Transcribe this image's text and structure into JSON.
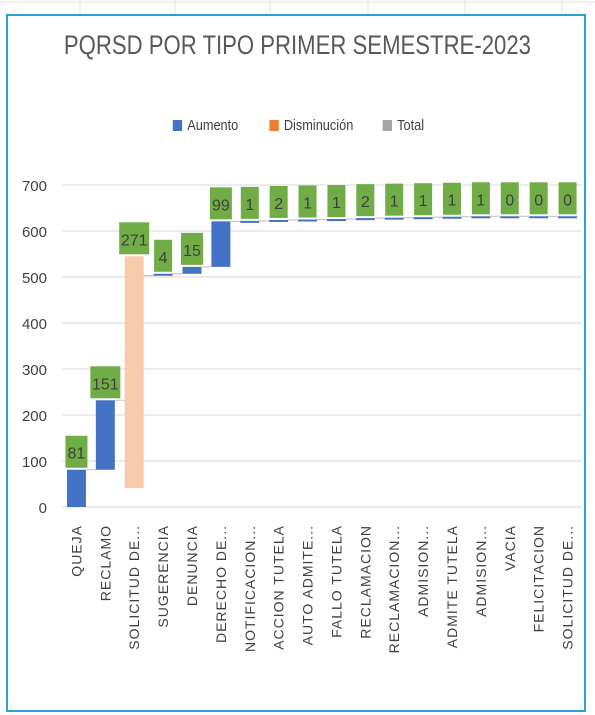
{
  "colors": {
    "aumento": "#4472c4",
    "disminucion": "#f8cbad",
    "total": "#a5a5a5",
    "label_bg": "#70ad47",
    "grid": "#d9d9d9",
    "frame": "#29a3d6"
  },
  "legend": [
    {
      "label": "Aumento",
      "color": "#4472c4"
    },
    {
      "label": "Disminución",
      "color": "#ed7d31"
    },
    {
      "label": "Total",
      "color": "#a5a5a5"
    }
  ],
  "chart_data": {
    "type": "waterfall",
    "title": "PQRSD POR TIPO PRIMER SEMESTRE-2023",
    "ylim": [
      0,
      700
    ],
    "yticks": [
      "0",
      "100",
      "200",
      "300",
      "400",
      "500",
      "600",
      "700"
    ],
    "grid": true,
    "legend_position": "top",
    "categories": [
      "QUEJA",
      "RECLAMO",
      "SOLICITUD DE...",
      "SUGERENCIA",
      "DENUNCIA",
      "DERECHO DE...",
      "NOTIFICACION...",
      "ACCION TUTELA",
      "AUTO ADMITE...",
      "FALLO TUTELA",
      "RECLAMACION",
      "RECLAMACION...",
      "ADMISION...",
      "ADMITE TUTELA",
      "ADMISION...",
      "VACIA",
      "FELICITACION",
      "SOLICITUD DE..."
    ],
    "values": [
      81,
      151,
      271,
      4,
      15,
      99,
      1,
      2,
      1,
      1,
      2,
      1,
      1,
      1,
      1,
      0,
      0,
      0
    ],
    "labels": [
      "81",
      "151",
      "271",
      "4",
      "15",
      "99",
      "1",
      "2",
      "1",
      "1",
      "2",
      "1",
      "1",
      "1",
      "1",
      "0",
      "0",
      "0"
    ],
    "bar_kind": [
      "aumento",
      "aumento",
      "disminucion",
      "aumento",
      "aumento",
      "aumento",
      "aumento",
      "aumento",
      "aumento",
      "aumento",
      "aumento",
      "aumento",
      "aumento",
      "aumento",
      "aumento",
      "aumento",
      "aumento",
      "aumento"
    ]
  }
}
